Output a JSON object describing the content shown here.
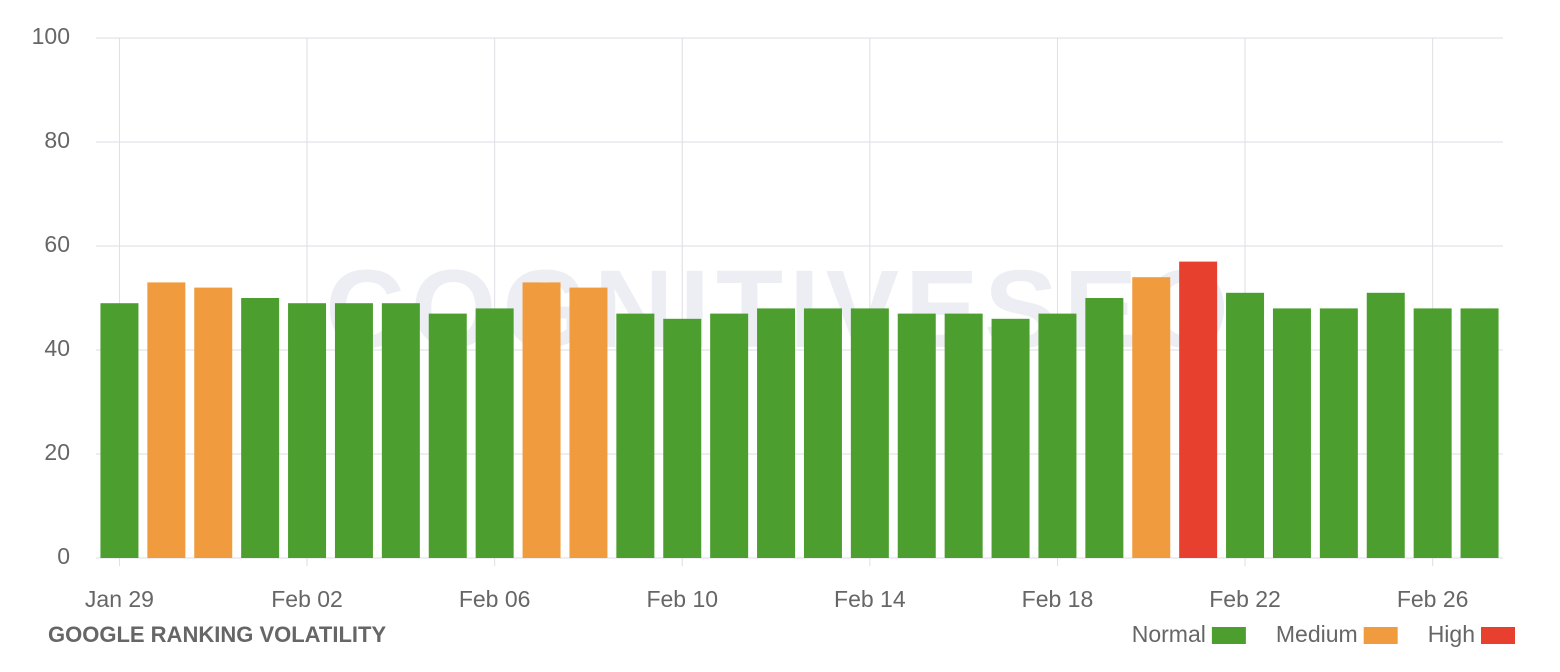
{
  "chart_data": {
    "type": "bar",
    "title": "GOOGLE RANKING VOLATILITY",
    "watermark": "COGNITIVESEO",
    "categories": [
      "Jan 29",
      null,
      null,
      null,
      "Feb 02",
      null,
      null,
      null,
      "Feb 06",
      null,
      null,
      null,
      "Feb 10",
      null,
      null,
      null,
      "Feb 14",
      null,
      null,
      null,
      "Feb 18",
      null,
      null,
      null,
      "Feb 22",
      null,
      null,
      null,
      "Feb 26",
      null
    ],
    "series": [
      {
        "name": "Normal",
        "color": "#4c9f2f",
        "values": [
          49,
          null,
          null,
          50,
          49,
          49,
          49,
          47,
          48,
          null,
          null,
          47,
          46,
          47,
          48,
          48,
          48,
          47,
          47,
          46,
          47,
          50,
          null,
          null,
          51,
          48,
          48,
          51,
          48,
          48
        ]
      },
      {
        "name": "Medium",
        "color": "#f19b3f",
        "values": [
          null,
          53,
          52,
          null,
          null,
          null,
          null,
          null,
          null,
          53,
          52,
          null,
          null,
          null,
          null,
          null,
          null,
          null,
          null,
          null,
          null,
          null,
          54,
          null,
          null,
          null,
          null,
          null,
          null,
          null
        ]
      },
      {
        "name": "High",
        "color": "#e8402f",
        "values": [
          null,
          null,
          null,
          null,
          null,
          null,
          null,
          null,
          null,
          null,
          null,
          null,
          null,
          null,
          null,
          null,
          null,
          null,
          null,
          null,
          null,
          null,
          null,
          57,
          null,
          null,
          null,
          null,
          null,
          null
        ]
      }
    ],
    "ylim": [
      0,
      100
    ],
    "yticks": [
      0,
      20,
      40,
      60,
      80,
      100
    ],
    "grid": true
  }
}
